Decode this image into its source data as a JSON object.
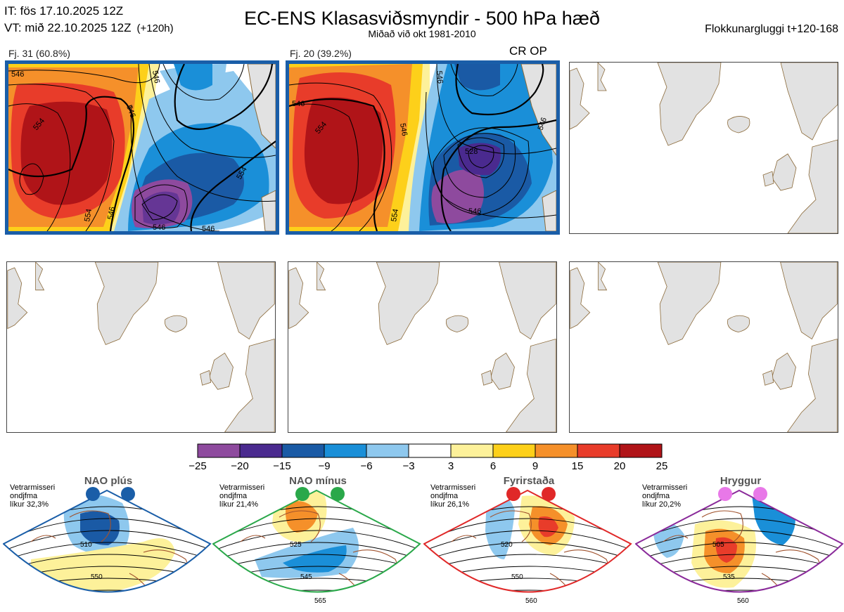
{
  "header": {
    "initial_time": "IT: fös 17.10.2025 12Z",
    "valid_time": "VT: mið 22.10.2025 12Z",
    "lead": "(+120h)",
    "title": "EC-ENS Klasasviðsmyndir - 500 hPa hæð",
    "subtitle": "Miðað við okt 1981-2010",
    "cluster_window": "Flokkunargluggi t+120-168"
  },
  "clusters": [
    {
      "label": "Fj. 31 (60.8%)",
      "members": 31,
      "percent": 60.8,
      "selected": true,
      "tag": ""
    },
    {
      "label": "Fj. 20 (39.2%)",
      "members": 20,
      "percent": 39.2,
      "selected": true,
      "tag": "CR OP"
    }
  ],
  "contour_labels": {
    "panel1": [
      "546",
      "554",
      "546",
      "546",
      "554",
      "546",
      "554",
      "546",
      "546"
    ],
    "panel2": [
      "546",
      "554",
      "546",
      "546",
      "528",
      "546",
      "554",
      "546"
    ]
  },
  "colors": {
    "border": "#1a5ea8",
    "land": "#e2e2e2",
    "coast": "#8b6a3a",
    "contour": "#000000"
  },
  "chart_data": {
    "type": "heatmap",
    "title": "EC-ENS Klasasviðsmyndir - 500 hPa hæð",
    "colorbar": {
      "ticks": [
        "−25",
        "−20",
        "−15",
        "−9",
        "−6",
        "−3",
        "3",
        "6",
        "9",
        "15",
        "20",
        "25"
      ],
      "colors": [
        "#8e4a9e",
        "#4a2a8f",
        "#1a5aa5",
        "#1a8fd8",
        "#8ec8ee",
        "#ffffff",
        "#fdf19a",
        "#fdd01a",
        "#f5902a",
        "#e83c2a",
        "#b01418"
      ]
    }
  },
  "regimes": [
    {
      "title": "NAO plús",
      "season": "Vetrarmisseri",
      "anomaly": "ondjfma",
      "likelihood": "líkur 32,3%",
      "color": "#1a5ea8",
      "dot": "#1a5ea8",
      "contours": [
        "510",
        "550"
      ]
    },
    {
      "title": "NAO mínus",
      "season": "Vetrarmisseri",
      "anomaly": "ondjfma",
      "likelihood": "líkur 21,4%",
      "color": "#2aa84a",
      "dot": "#2aa84a",
      "contours": [
        "525",
        "545",
        "565"
      ]
    },
    {
      "title": "Fyrirstaða",
      "season": "Vetrarmisseri",
      "anomaly": "ondjfma",
      "likelihood": "líkur 26,1%",
      "color": "#e02828",
      "dot": "#e02828",
      "contours": [
        "520",
        "550",
        "560"
      ]
    },
    {
      "title": "Hryggur",
      "season": "Vetrarmisseri",
      "anomaly": "ondjfma",
      "likelihood": "líkur 20,2%",
      "color": "#8a2a9a",
      "dot": "#e878e8",
      "contours": [
        "505",
        "535",
        "560"
      ]
    }
  ]
}
